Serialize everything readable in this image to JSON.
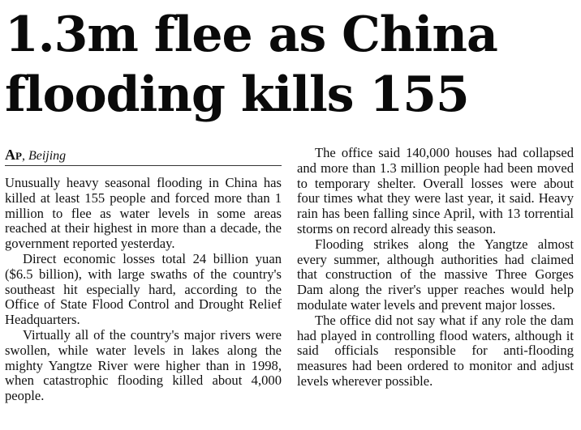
{
  "headline": "1.3m flee as China flooding kills 155",
  "byline": {
    "agency": "Ap",
    "separator": ",",
    "place": "Beijing"
  },
  "paragraphs": [
    "Unusually heavy seasonal flooding in China has killed at least 155 people and forced more than 1 million to flee as water levels in some areas reached at their highest in more than a decade, the government reported yesterday.",
    "Direct economic losses total 24 billion yuan ($6.5 billion), with large swaths of the country's southeast hit especially hard, according to the Office of State Flood Control and Drought Relief Headquarters.",
    "Virtually all of the country's major rivers were swollen, while water levels in lakes along the mighty Yangtze River were higher than in 1998, when catastrophic flooding killed about 4,000 people.",
    "The office said 140,000 houses had collapsed and more than 1.3 million people had been moved to temporary shelter. Overall losses were about four times what they were last year, it said. Heavy rain has been falling since April, with 13 torrential storms on record already this season.",
    "Flooding strikes along the Yangtze almost every summer, although authorities had claimed that construction of the massive Three Gorges Dam along the river's upper reaches would help modulate water levels and prevent major losses.",
    "The office did not say what if any role the dam had played in controlling flood waters, although it said officials responsible for anti-flooding measures had been ordered to monitor and adjust levels wherever possible."
  ]
}
